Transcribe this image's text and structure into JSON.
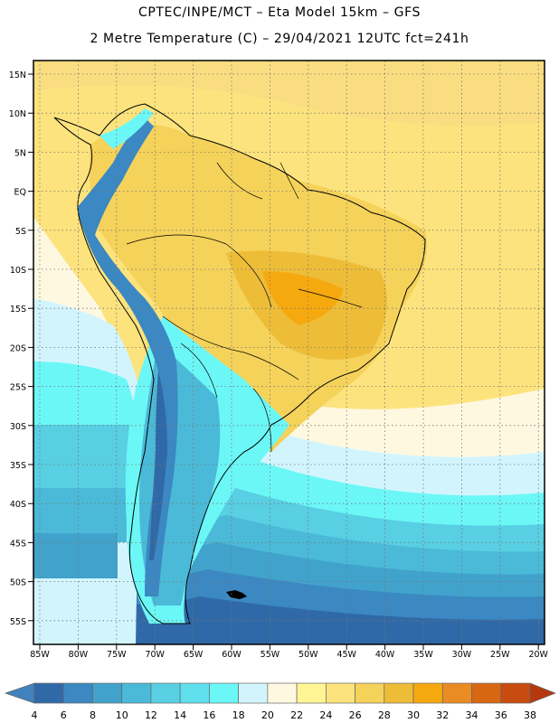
{
  "header": {
    "line1": "CPTEC/INPE/MCT –  Eta Model 15km – GFS",
    "line2": "2 Metre Temperature (C) – 29/04/2021 12UTC fct=241h"
  },
  "map": {
    "lat_labels": [
      "15N",
      "10N",
      "5N",
      "EQ",
      "5S",
      "10S",
      "15S",
      "20S",
      "25S",
      "30S",
      "35S",
      "40S",
      "45S",
      "50S",
      "55S"
    ],
    "lon_labels": [
      "85W",
      "80W",
      "75W",
      "70W",
      "65W",
      "60W",
      "55W",
      "50W",
      "45W",
      "40W",
      "35W",
      "30W",
      "25W",
      "20W"
    ]
  },
  "legend": {
    "values": [
      "4",
      "6",
      "8",
      "10",
      "12",
      "14",
      "16",
      "18",
      "20",
      "22",
      "24",
      "26",
      "28",
      "30",
      "32",
      "34",
      "36",
      "38"
    ],
    "colors": [
      "#3f82be",
      "#2f69a7",
      "#3b88c2",
      "#41a3cc",
      "#4bbad8",
      "#58cfe3",
      "#60e0ec",
      "#6cf7f7",
      "#d2f5fd",
      "#fff8e1",
      "#fff595",
      "#fde37d",
      "#f5d25a",
      "#eebd38",
      "#f6a90f",
      "#ea8b23",
      "#d86714",
      "#c84b10",
      "#b5380c"
    ]
  }
}
